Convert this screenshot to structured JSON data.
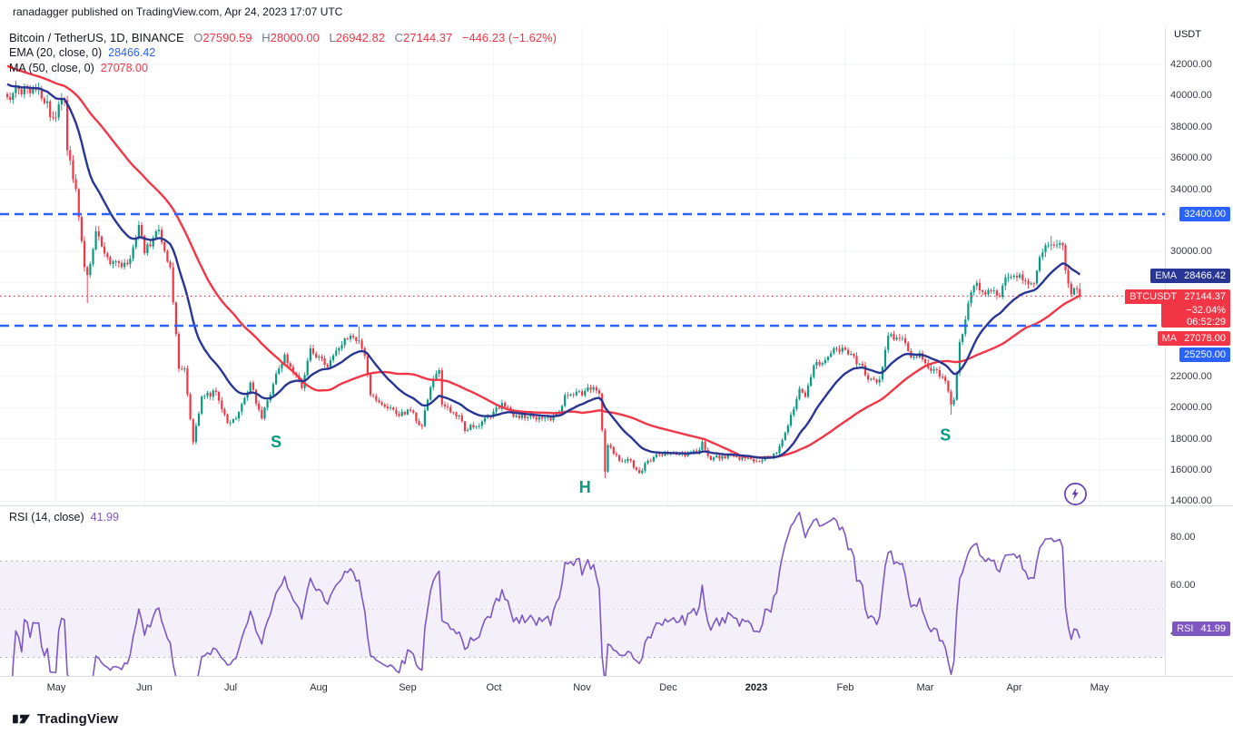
{
  "header": {
    "text": "ranadagger published on TradingView.com, Apr 24, 2023 17:07 UTC"
  },
  "legend": {
    "title": "Bitcoin / TetherUS, 1D, BINANCE",
    "ohlc": [
      {
        "k": "O",
        "v": "27590.59"
      },
      {
        "k": "H",
        "v": "28000.00"
      },
      {
        "k": "L",
        "v": "26942.82"
      },
      {
        "k": "C",
        "v": "27144.37"
      }
    ],
    "change": "−446.23 (−1.62%)",
    "ema_label": "EMA (20, close, 0)",
    "ema_value": "28466.42",
    "ma_label": "MA (50, close, 0)",
    "ma_value": "27078.00",
    "rsi_label": "RSI (14, close)",
    "rsi_value": "41.99"
  },
  "price_axis": {
    "unit": "USDT",
    "ticks": [
      {
        "label": "42000.00",
        "price": 42000
      },
      {
        "label": "40000.00",
        "price": 40000
      },
      {
        "label": "38000.00",
        "price": 38000
      },
      {
        "label": "36000.00",
        "price": 36000
      },
      {
        "label": "34000.00",
        "price": 34000
      },
      {
        "label": "30000.00",
        "price": 30000
      },
      {
        "label": "22000.00",
        "price": 22000
      },
      {
        "label": "20000.00",
        "price": 20000
      },
      {
        "label": "18000.00",
        "price": 18000
      },
      {
        "label": "16000.00",
        "price": 16000
      },
      {
        "label": "14000.00",
        "price": 14000
      }
    ]
  },
  "rsi_axis": {
    "ticks": [
      {
        "label": "80.00",
        "value": 80
      },
      {
        "label": "60.00",
        "value": 60
      },
      {
        "label": "40.00",
        "value": 40
      }
    ]
  },
  "badges": {
    "resistance": {
      "text": "32400.00"
    },
    "ema": {
      "label": "EMA",
      "text": "28466.42"
    },
    "symbol": {
      "label": "BTCUSDT",
      "price": "27144.37",
      "change_pct": "−32.04%",
      "countdown": "06:52:29"
    },
    "ma": {
      "label": "MA",
      "text": "27078.00"
    },
    "support": {
      "text": "25250.00"
    },
    "rsi": {
      "label": "RSI",
      "text": "41.99"
    }
  },
  "footer": {
    "brand": "TradingView"
  },
  "colors": {
    "up": "#089981",
    "down": "#f23645",
    "ema_line": "#283593",
    "ma_line": "#f23645",
    "level_blue": "#2962ff",
    "price_line": "#f23645",
    "rsi_line": "#7e57c2",
    "annotation": "#089981",
    "badge_blue": "#2962ff",
    "badge_red": "#f23645",
    "badge_navy": "#283593",
    "badge_purple": "#7e57c2"
  },
  "chart_data": {
    "type": "candlestick",
    "title": "Bitcoin / TetherUS, 1D, BINANCE",
    "interval": "1D",
    "days_total": 375,
    "ylim": [
      13800,
      43500
    ],
    "x_axis": [
      {
        "label": "May",
        "day": 17
      },
      {
        "label": "Jun",
        "day": 48
      },
      {
        "label": "Jul",
        "day": 78
      },
      {
        "label": "Aug",
        "day": 109
      },
      {
        "label": "Sep",
        "day": 140
      },
      {
        "label": "Oct",
        "day": 170
      },
      {
        "label": "Nov",
        "day": 201
      },
      {
        "label": "Dec",
        "day": 231
      },
      {
        "label": "2023",
        "day": 262
      },
      {
        "label": "Feb",
        "day": 293
      },
      {
        "label": "Mar",
        "day": 321
      },
      {
        "label": "Apr",
        "day": 352
      },
      {
        "label": "May",
        "day": 382
      }
    ],
    "price_keyframes": [
      [
        0,
        39900
      ],
      [
        7,
        40500
      ],
      [
        11,
        40400
      ],
      [
        16,
        38600
      ],
      [
        20,
        39700
      ],
      [
        21,
        36500
      ],
      [
        24,
        34000
      ],
      [
        27,
        29000
      ],
      [
        28,
        28500
      ],
      [
        31,
        31300
      ],
      [
        36,
        29200
      ],
      [
        42,
        29200
      ],
      [
        46,
        31700
      ],
      [
        48,
        29900
      ],
      [
        53,
        31400
      ],
      [
        57,
        29000
      ],
      [
        60,
        22500
      ],
      [
        62,
        22500
      ],
      [
        65,
        17800
      ],
      [
        68,
        20700
      ],
      [
        73,
        21000
      ],
      [
        77,
        19000
      ],
      [
        80,
        19300
      ],
      [
        85,
        21600
      ],
      [
        89,
        19300
      ],
      [
        95,
        22500
      ],
      [
        97,
        23400
      ],
      [
        103,
        21250
      ],
      [
        106,
        23800
      ],
      [
        112,
        22600
      ],
      [
        116,
        23800
      ],
      [
        119,
        24400
      ],
      [
        123,
        24300
      ],
      [
        125,
        23300
      ],
      [
        127,
        20800
      ],
      [
        134,
        20000
      ],
      [
        136,
        19600
      ],
      [
        141,
        19800
      ],
      [
        145,
        18800
      ],
      [
        148,
        21300
      ],
      [
        151,
        22400
      ],
      [
        152,
        20200
      ],
      [
        155,
        19700
      ],
      [
        158,
        19500
      ],
      [
        160,
        18500
      ],
      [
        166,
        19100
      ],
      [
        169,
        19400
      ],
      [
        173,
        20300
      ],
      [
        177,
        19400
      ],
      [
        182,
        19400
      ],
      [
        187,
        19300
      ],
      [
        190,
        19200
      ],
      [
        194,
        20100
      ],
      [
        195,
        20800
      ],
      [
        198,
        20800
      ],
      [
        204,
        21150
      ],
      [
        205,
        21300
      ],
      [
        207,
        20900
      ],
      [
        208,
        18550
      ],
      [
        209,
        15900
      ],
      [
        210,
        17600
      ],
      [
        214,
        16600
      ],
      [
        217,
        16700
      ],
      [
        221,
        15800
      ],
      [
        224,
        16600
      ],
      [
        230,
        17100
      ],
      [
        235,
        17000
      ],
      [
        241,
        17100
      ],
      [
        243,
        17800
      ],
      [
        246,
        16650
      ],
      [
        250,
        16900
      ],
      [
        255,
        16850
      ],
      [
        261,
        16550
      ],
      [
        265,
        16850
      ],
      [
        269,
        17100
      ],
      [
        273,
        18850
      ],
      [
        275,
        19900
      ],
      [
        277,
        21200
      ],
      [
        279,
        20700
      ],
      [
        282,
        22700
      ],
      [
        286,
        23050
      ],
      [
        290,
        23750
      ],
      [
        293,
        23700
      ],
      [
        298,
        22800
      ],
      [
        301,
        21800
      ],
      [
        305,
        21800
      ],
      [
        308,
        24600
      ],
      [
        313,
        24450
      ],
      [
        316,
        23200
      ],
      [
        319,
        23500
      ],
      [
        323,
        22350
      ],
      [
        325,
        22400
      ],
      [
        328,
        21700
      ],
      [
        330,
        20200
      ],
      [
        331,
        20500
      ],
      [
        333,
        24200
      ],
      [
        334,
        24700
      ],
      [
        337,
        27400
      ],
      [
        339,
        28000
      ],
      [
        342,
        27250
      ],
      [
        344,
        27450
      ],
      [
        347,
        27100
      ],
      [
        349,
        28350
      ],
      [
        352,
        28450
      ],
      [
        355,
        28170
      ],
      [
        359,
        27950
      ],
      [
        361,
        29650
      ],
      [
        364,
        30400
      ],
      [
        365,
        30450
      ],
      [
        369,
        30400
      ],
      [
        370,
        28800
      ],
      [
        372,
        27250
      ],
      [
        374,
        27600
      ],
      [
        375,
        27144.37
      ]
    ],
    "wick_overrides": [
      [
        28,
        "low",
        26700
      ],
      [
        65,
        "low",
        17592
      ],
      [
        123,
        "high",
        25212
      ],
      [
        209,
        "low",
        15476
      ],
      [
        330,
        "low",
        19549
      ],
      [
        365,
        "high",
        31000
      ]
    ],
    "levels": [
      {
        "price": 32400,
        "label": "32400.00",
        "style": "dashed",
        "color": "#2962ff"
      },
      {
        "price": 25250,
        "label": "25250.00",
        "style": "dashed",
        "color": "#2962ff"
      }
    ],
    "last_price_line": 27144.37,
    "ohlc_last": {
      "open": 27590.59,
      "high": 28000.0,
      "low": 26942.82,
      "close": 27144.37,
      "change": -446.23,
      "change_pct": -1.62
    },
    "overlays": [
      {
        "name": "EMA",
        "period": 20,
        "last": 28466.42
      },
      {
        "name": "MA",
        "period": 50,
        "last": 27078.0
      }
    ],
    "annotations": [
      {
        "text": "S",
        "day": 94,
        "price": 17450
      },
      {
        "text": "H",
        "day": 202,
        "price": 14550
      },
      {
        "text": "S",
        "day": 328,
        "price": 17900
      }
    ],
    "rsi_pane": {
      "type": "line",
      "period": 14,
      "last": 41.99,
      "band": [
        30,
        70
      ],
      "ticks": [
        80,
        60,
        40
      ]
    }
  }
}
